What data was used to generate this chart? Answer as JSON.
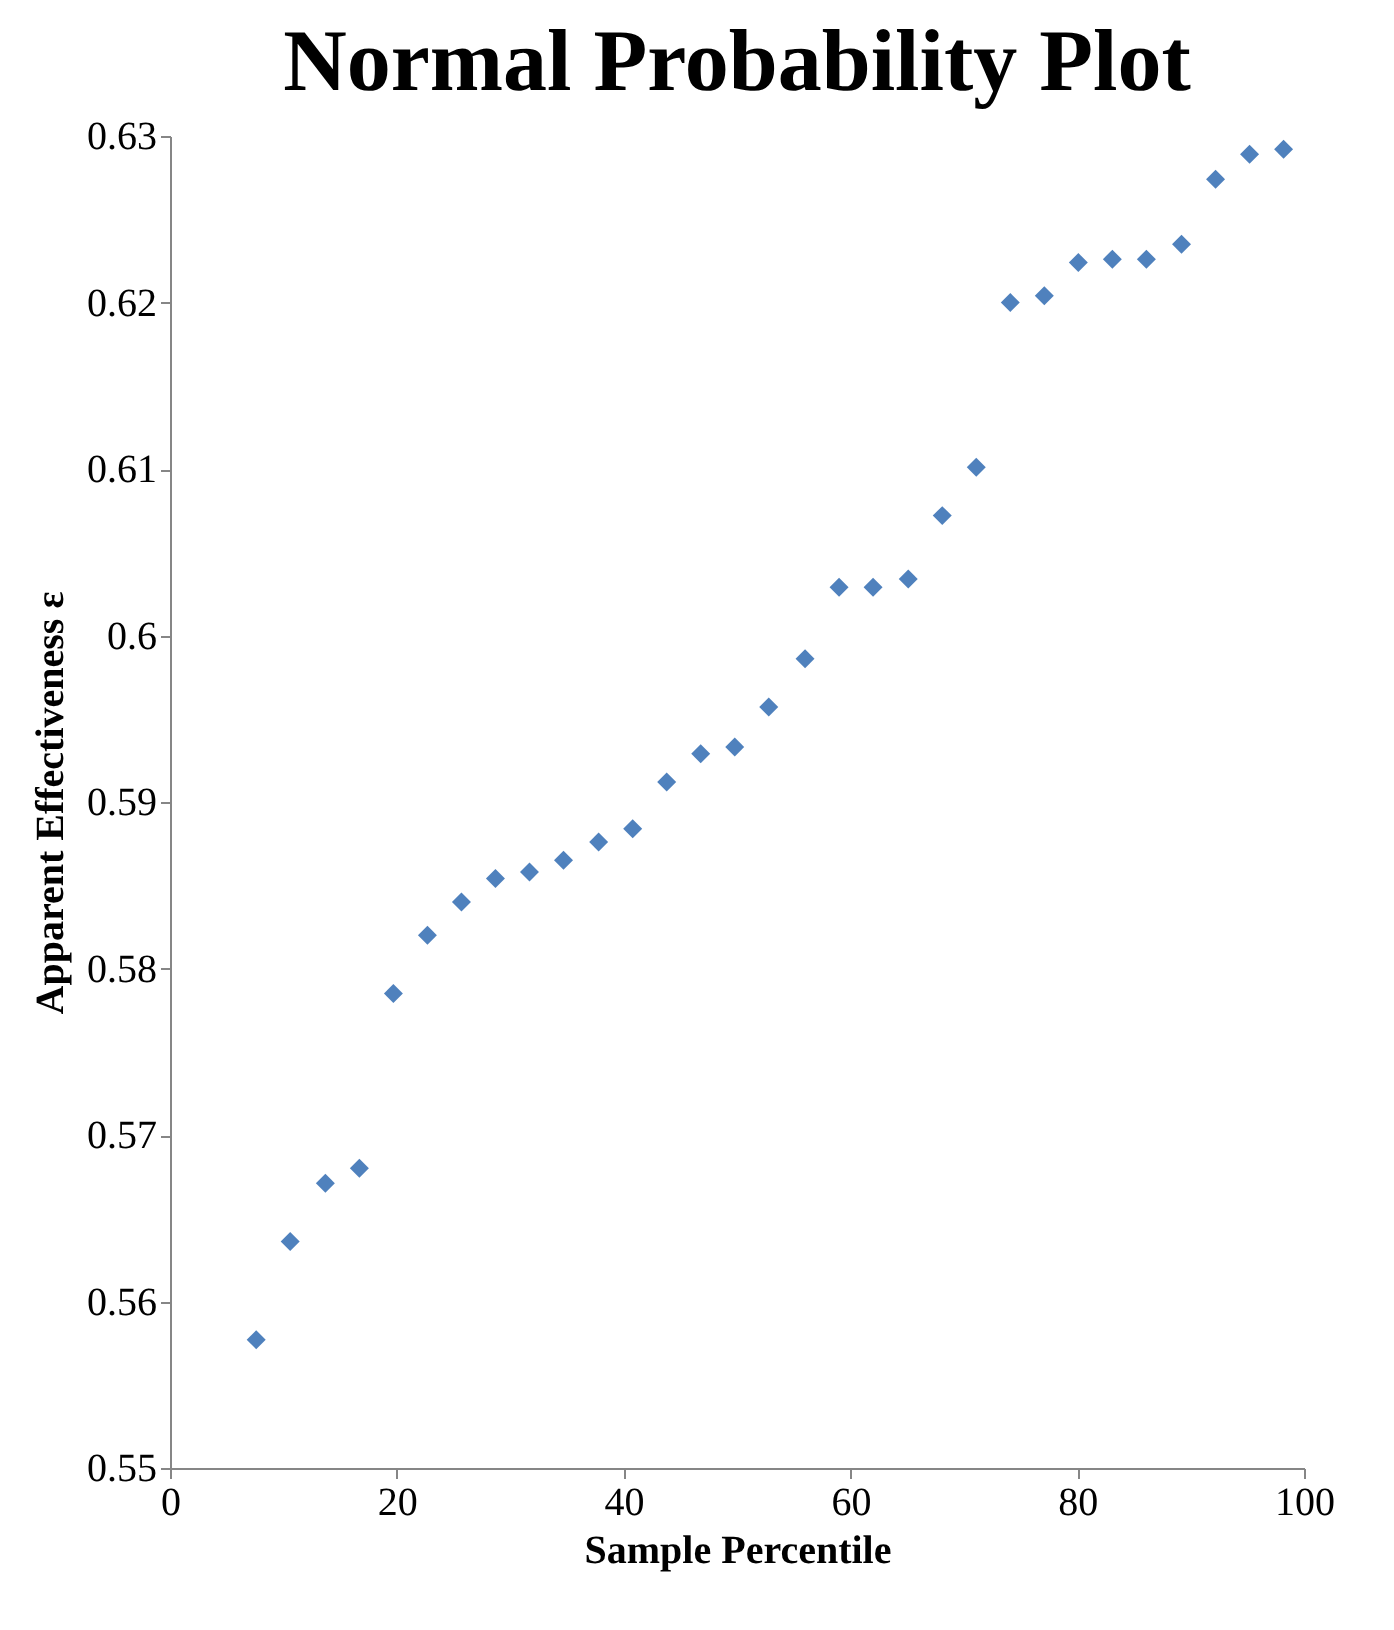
{
  "chart_data": {
    "type": "scatter",
    "title": "Normal Probability Plot",
    "xlabel": "Sample Percentile",
    "ylabel": "Apparent Effectiveness ε",
    "x": [
      7.6,
      10.6,
      13.7,
      16.7,
      19.7,
      22.7,
      25.7,
      28.7,
      31.7,
      34.7,
      37.8,
      40.8,
      43.8,
      46.8,
      49.8,
      52.8,
      56.0,
      59.0,
      62.0,
      65.1,
      68.1,
      71.1,
      74.1,
      77.1,
      80.1,
      83.1,
      86.1,
      89.2,
      92.2,
      95.2,
      98.2
    ],
    "series": [
      {
        "color": "#4f81bd",
        "values": [
          0.5577,
          0.5636,
          0.5671,
          0.568,
          0.5785,
          0.582,
          0.584,
          0.5854,
          0.5858,
          0.5865,
          0.5876,
          0.5884,
          0.5912,
          0.5929,
          0.5933,
          0.5957,
          0.5986,
          0.6029,
          0.6029,
          0.6034,
          0.6072,
          0.6101,
          0.62,
          0.6204,
          0.6224,
          0.6226,
          0.6226,
          0.6235,
          0.6274,
          0.6289,
          0.6292
        ]
      }
    ],
    "xlim": [
      0,
      100
    ],
    "xticks": [
      0,
      20,
      40,
      60,
      80,
      100
    ],
    "ylim": [
      0.55,
      0.63
    ],
    "yticks": [
      0.55,
      0.56,
      0.57,
      0.58,
      0.59,
      0.6,
      0.61,
      0.62,
      0.63
    ],
    "marker": "diamond",
    "grid": false
  }
}
